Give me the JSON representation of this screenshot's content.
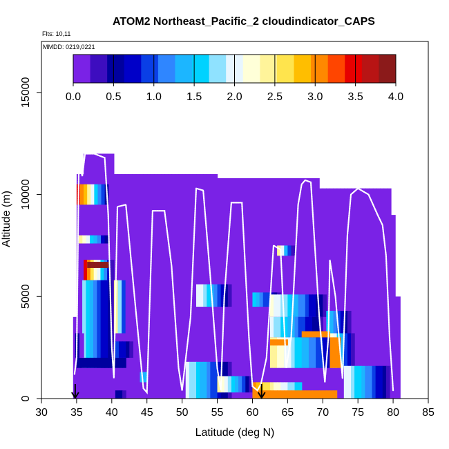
{
  "chart_data": {
    "type": "heatmap",
    "title": "ATOM2 Northeast_Pacific_2 cloudindicator_CAPS",
    "annotations": [
      "Flts: 10,11",
      "MMDD: 0219,0221"
    ],
    "xlabel": "Latitude (deg N)",
    "ylabel": "Altitude (m)",
    "xlim": [
      30,
      85
    ],
    "ylim": [
      0,
      17500
    ],
    "xticks": [
      30,
      35,
      40,
      45,
      50,
      55,
      60,
      65,
      70,
      75,
      80,
      85
    ],
    "yticks": [
      0,
      5000,
      10000,
      15000
    ],
    "colorbar": {
      "min": 0,
      "max": 4,
      "ticks": [
        "0.0",
        "0.5",
        "1.0",
        "1.5",
        "2.0",
        "2.5",
        "3.0",
        "3.5",
        "4.0"
      ],
      "colors": [
        "#7a22e6",
        "#3d0dbf",
        "#00009e",
        "#0000c8",
        "#0a3fe6",
        "#2f86ff",
        "#1cb6ff",
        "#00d2ff",
        "#8fe2ff",
        "#e8f6ff",
        "#ffffd8",
        "#fff49a",
        "#ffe44d",
        "#ffbe00",
        "#ff8800",
        "#ff4500",
        "#e60000",
        "#b81414",
        "#8b1a1a"
      ]
    },
    "flight_boundary_markers_lat": [
      34.8,
      61.3
    ],
    "background_value": 0.1,
    "cells": [
      {
        "lat": [
          34.5,
          35.3
        ],
        "alt": [
          0,
          4000
        ],
        "v": [
          0.1,
          0.1
        ]
      },
      {
        "lat": [
          35.0,
          36.0
        ],
        "alt": [
          0,
          11000
        ],
        "v": [
          0.1,
          0.1
        ]
      },
      {
        "lat": [
          36.0,
          40.3
        ],
        "alt": [
          0,
          12000
        ],
        "v": [
          0.1,
          0.1
        ]
      },
      {
        "lat": [
          40.3,
          45.0
        ],
        "alt": [
          0,
          11000
        ],
        "v": [
          0.1,
          0.1
        ]
      },
      {
        "lat": [
          45.0,
          55.0
        ],
        "alt": [
          0,
          11000
        ],
        "v": [
          0.1,
          0.1
        ]
      },
      {
        "lat": [
          55.0,
          65.0
        ],
        "alt": [
          0,
          10800
        ],
        "v": [
          0.1,
          0.1
        ]
      },
      {
        "lat": [
          65.0,
          69.5
        ],
        "alt": [
          0,
          10800
        ],
        "v": [
          0.1,
          0.1
        ]
      },
      {
        "lat": [
          69.5,
          72.5
        ],
        "alt": [
          0,
          10300
        ],
        "v": [
          0.1,
          0.1
        ]
      },
      {
        "lat": [
          72.5,
          79.7
        ],
        "alt": [
          0,
          10300
        ],
        "v": [
          0.1,
          0.1
        ]
      },
      {
        "lat": [
          79.7,
          80.3
        ],
        "alt": [
          0,
          9000
        ],
        "v": [
          0.1,
          0.1
        ]
      },
      {
        "lat": [
          80.3,
          81.0
        ],
        "alt": [
          0,
          5000
        ],
        "v": [
          0.1,
          0.1
        ]
      },
      {
        "lat": [
          35.0,
          39.5
        ],
        "alt": [
          9500,
          10500
        ],
        "v": [
          3.5,
          0.5
        ]
      },
      {
        "lat": [
          35.3,
          39.5
        ],
        "alt": [
          7600,
          8000
        ],
        "v": [
          2.5,
          0.5
        ]
      },
      {
        "lat": [
          36.0,
          40.3
        ],
        "alt": [
          5800,
          6800
        ],
        "v": [
          3.5,
          0.3
        ]
      },
      {
        "lat": [
          35.8,
          40.5
        ],
        "alt": [
          1500,
          5800
        ],
        "v": [
          1.7,
          0.3
        ]
      },
      {
        "lat": [
          36.5,
          39.5
        ],
        "alt": [
          6400,
          6700
        ],
        "v": [
          3.8,
          3.8
        ]
      },
      {
        "lat": [
          40.3,
          42.5
        ],
        "alt": [
          3200,
          5800
        ],
        "v": [
          2.5,
          0.2
        ]
      },
      {
        "lat": [
          35.0,
          42.0
        ],
        "alt": [
          1500,
          2000
        ],
        "v": [
          0.5,
          0.5
        ]
      },
      {
        "lat": [
          34.8,
          36.0
        ],
        "alt": [
          2000,
          3200
        ],
        "v": [
          0.5,
          0.2
        ]
      },
      {
        "lat": [
          40.5,
          43.0
        ],
        "alt": [
          2000,
          2800
        ],
        "v": [
          1.0,
          0.3
        ]
      },
      {
        "lat": [
          40.5,
          42.0
        ],
        "alt": [
          0,
          400
        ],
        "v": [
          0.5,
          0.4
        ]
      },
      {
        "lat": [
          44.0,
          45.0
        ],
        "alt": [
          800,
          1300
        ],
        "v": [
          1.3,
          1.3
        ]
      },
      {
        "lat": [
          52.0,
          57.0
        ],
        "alt": [
          4500,
          5600
        ],
        "v": [
          2.1,
          0.3
        ]
      },
      {
        "lat": [
          50.5,
          57.0
        ],
        "alt": [
          0,
          1800
        ],
        "v": [
          2.0,
          0.3
        ]
      },
      {
        "lat": [
          55.0,
          60.0
        ],
        "alt": [
          300,
          1100
        ],
        "v": [
          2.4,
          0.4
        ]
      },
      {
        "lat": [
          60.0,
          64.0
        ],
        "alt": [
          4500,
          5200
        ],
        "v": [
          1.5,
          0.4
        ]
      },
      {
        "lat": [
          63.5,
          66.0
        ],
        "alt": [
          7000,
          7500
        ],
        "v": [
          2.5,
          0.3
        ]
      },
      {
        "lat": [
          62.5,
          70.5
        ],
        "alt": [
          4000,
          5100
        ],
        "v": [
          2.2,
          0.3
        ]
      },
      {
        "lat": [
          62.5,
          70.0
        ],
        "alt": [
          3000,
          4000
        ],
        "v": [
          2.0,
          0.3
        ]
      },
      {
        "lat": [
          62.5,
          72.0
        ],
        "alt": [
          1500,
          3000
        ],
        "v": [
          2.5,
          0.4
        ]
      },
      {
        "lat": [
          70.5,
          74.0
        ],
        "alt": [
          3200,
          4300
        ],
        "v": [
          1.6,
          0.3
        ]
      },
      {
        "lat": [
          71.0,
          74.5
        ],
        "alt": [
          1500,
          3200
        ],
        "v": [
          2.3,
          0.4
        ]
      },
      {
        "lat": [
          73.0,
          79.5
        ],
        "alt": [
          0,
          1600
        ],
        "v": [
          2.1,
          0.4
        ]
      },
      {
        "lat": [
          60.0,
          67.0
        ],
        "alt": [
          0,
          800
        ],
        "v": [
          3.0,
          1.5
        ]
      },
      {
        "lat": [
          60.5,
          72.0
        ],
        "alt": [
          0,
          400
        ],
        "v": [
          3.0,
          3.0
        ]
      },
      {
        "lat": [
          67.0,
          71.0
        ],
        "alt": [
          3000,
          3300
        ],
        "v": [
          3.0,
          3.0
        ]
      },
      {
        "lat": [
          62.5,
          65.0
        ],
        "alt": [
          2600,
          2900
        ],
        "v": [
          3.0,
          3.0
        ]
      },
      {
        "lat": [
          71.0,
          72.5
        ],
        "alt": [
          1500,
          3000
        ],
        "v": [
          3.0,
          3.0
        ]
      }
    ],
    "flight_track": [
      [
        34.7,
        1200
      ],
      [
        35.0,
        2000
      ],
      [
        35.3,
        11000
      ],
      [
        35.6,
        11200
      ],
      [
        35.8,
        10900
      ],
      [
        36.2,
        12000
      ],
      [
        37.5,
        12000
      ],
      [
        39.0,
        11800
      ],
      [
        39.5,
        9000
      ],
      [
        40.0,
        2500
      ],
      [
        40.3,
        1000
      ],
      [
        40.8,
        9400
      ],
      [
        42.0,
        9500
      ],
      [
        43.5,
        4000
      ],
      [
        44.5,
        500
      ],
      [
        45.0,
        300
      ],
      [
        45.8,
        9200
      ],
      [
        47.5,
        9200
      ],
      [
        48.5,
        6500
      ],
      [
        49.5,
        1500
      ],
      [
        50.0,
        400
      ],
      [
        51.2,
        4000
      ],
      [
        52.0,
        10300
      ],
      [
        53.0,
        10200
      ],
      [
        54.0,
        6000
      ],
      [
        55.0,
        1500
      ],
      [
        55.5,
        400
      ],
      [
        56.0,
        5000
      ],
      [
        57.0,
        9600
      ],
      [
        58.5,
        9600
      ],
      [
        59.5,
        3000
      ],
      [
        60.0,
        600
      ],
      [
        60.7,
        400
      ],
      [
        61.2,
        700
      ],
      [
        62.0,
        2000
      ],
      [
        63.0,
        7500
      ],
      [
        64.0,
        7300
      ],
      [
        64.8,
        1500
      ],
      [
        65.5,
        3000
      ],
      [
        66.5,
        9500
      ],
      [
        67.0,
        10500
      ],
      [
        67.5,
        10700
      ],
      [
        68.3,
        10600
      ],
      [
        69.5,
        4000
      ],
      [
        70.3,
        800
      ],
      [
        70.8,
        3000
      ],
      [
        71.0,
        6800
      ],
      [
        71.8,
        5000
      ],
      [
        72.3,
        3000
      ],
      [
        72.8,
        1000
      ],
      [
        73.5,
        8000
      ],
      [
        74.0,
        10000
      ],
      [
        75.0,
        10300
      ],
      [
        76.5,
        10000
      ],
      [
        77.8,
        9000
      ],
      [
        78.5,
        8500
      ],
      [
        79.0,
        7000
      ],
      [
        79.5,
        3000
      ],
      [
        80.0,
        400
      ]
    ]
  }
}
